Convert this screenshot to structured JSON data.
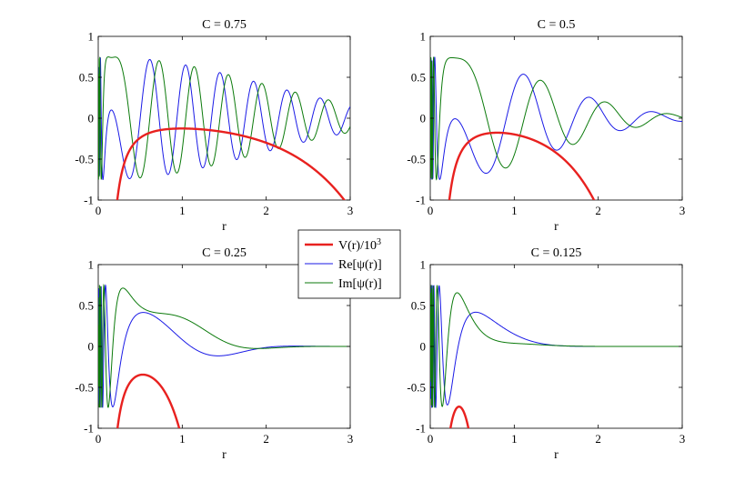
{
  "chart_data": [
    {
      "type": "line",
      "title": "C = 0.75",
      "C": 0.75,
      "xlabel": "r",
      "ylabel": "",
      "xlim": [
        0,
        3
      ],
      "ylim": [
        -1,
        1
      ],
      "x_ticks": [
        "0",
        "1",
        "2",
        "3"
      ],
      "y_ticks": [
        "1",
        "0.5",
        "0",
        "-0.5",
        "-1"
      ],
      "series": [
        {
          "key": "V",
          "color": "#e8211f",
          "width": 2.4
        },
        {
          "key": "Re",
          "color": "#1a1ae6",
          "width": 1.0
        },
        {
          "key": "Im",
          "color": "#0b7a0b",
          "width": 1.0
        }
      ]
    },
    {
      "type": "line",
      "title": "C = 0.5",
      "C": 0.5,
      "xlabel": "r",
      "ylabel": "",
      "xlim": [
        0,
        3
      ],
      "ylim": [
        -1,
        1
      ],
      "x_ticks": [
        "0",
        "1",
        "2",
        "3"
      ],
      "y_ticks": [
        "1",
        "0.5",
        "0",
        "-0.5",
        "-1"
      ],
      "series": [
        {
          "key": "V",
          "color": "#e8211f",
          "width": 2.4
        },
        {
          "key": "Re",
          "color": "#1a1ae6",
          "width": 1.0
        },
        {
          "key": "Im",
          "color": "#0b7a0b",
          "width": 1.0
        }
      ]
    },
    {
      "type": "line",
      "title": "C = 0.25",
      "C": 0.25,
      "xlabel": "r",
      "ylabel": "",
      "xlim": [
        0,
        3
      ],
      "ylim": [
        -1,
        1
      ],
      "x_ticks": [
        "0",
        "1",
        "2",
        "3"
      ],
      "y_ticks": [
        "1",
        "0.5",
        "0",
        "-0.5",
        "-1"
      ],
      "series": [
        {
          "key": "V",
          "color": "#e8211f",
          "width": 2.4
        },
        {
          "key": "Re",
          "color": "#1a1ae6",
          "width": 1.0
        },
        {
          "key": "Im",
          "color": "#0b7a0b",
          "width": 1.0
        }
      ]
    },
    {
      "type": "line",
      "title": "C = 0.125",
      "C": 0.125,
      "xlabel": "r",
      "ylabel": "",
      "xlim": [
        0,
        3
      ],
      "ylim": [
        -1,
        1
      ],
      "x_ticks": [
        "0",
        "1",
        "2",
        "3"
      ],
      "y_ticks": [
        "1",
        "0.5",
        "0",
        "-0.5",
        "-1"
      ],
      "series": [
        {
          "key": "V",
          "color": "#e8211f",
          "width": 2.4
        },
        {
          "key": "Re",
          "color": "#1a1ae6",
          "width": 1.0
        },
        {
          "key": "Im",
          "color": "#0b7a0b",
          "width": 1.0
        }
      ]
    }
  ],
  "legend": {
    "placement": "center",
    "entries": [
      {
        "key": "V",
        "label_main": "V(r)/10",
        "label_sup": "3",
        "color": "#e8211f"
      },
      {
        "key": "Re",
        "label_main": "Re[ψ(r)]",
        "label_sup": "",
        "color": "#1a1ae6"
      },
      {
        "key": "Im",
        "label_main": "Im[ψ(r)]",
        "label_sup": "",
        "color": "#0b7a0b"
      }
    ]
  }
}
